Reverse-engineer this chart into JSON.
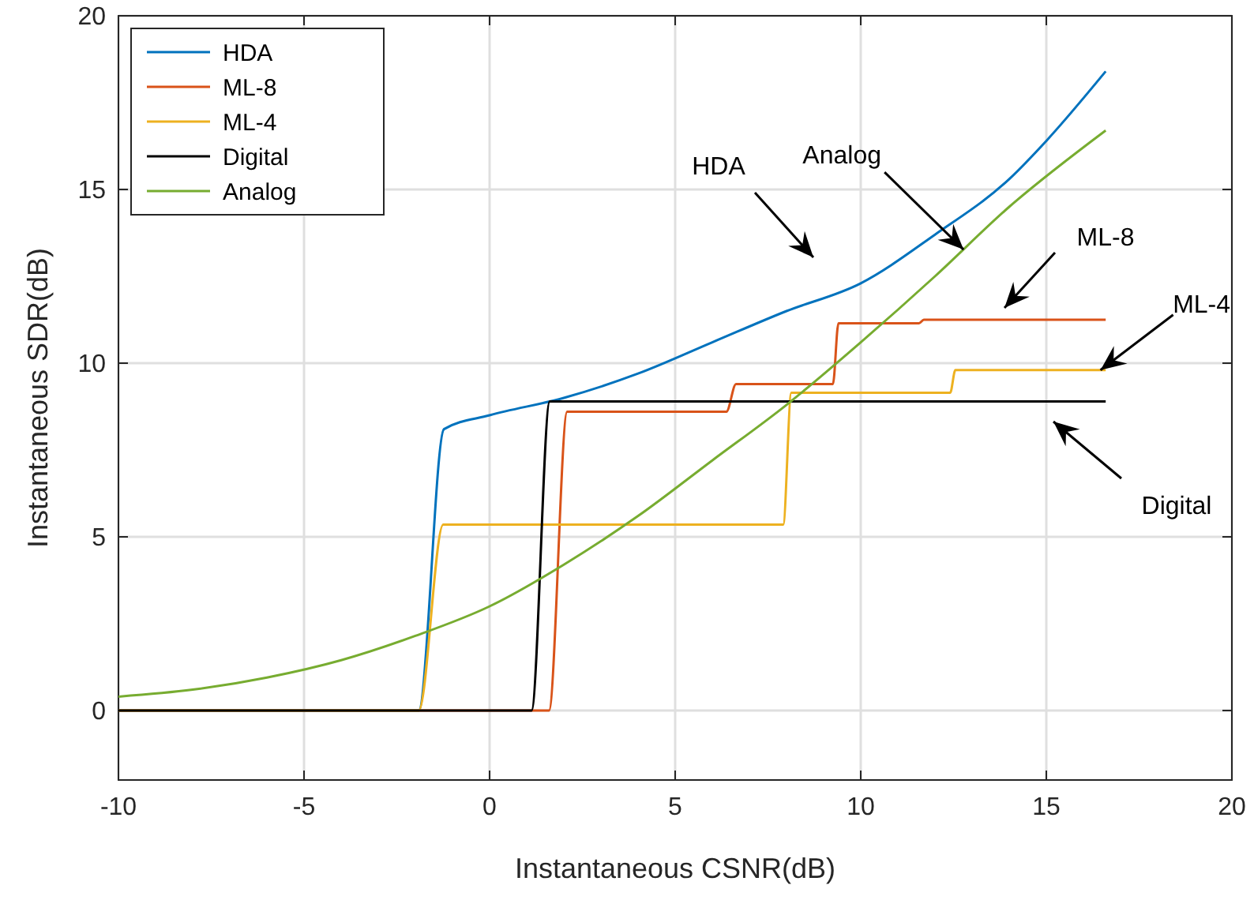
{
  "chart_data": {
    "type": "line",
    "xlabel": "Instantaneous CSNR(dB)",
    "ylabel": "Instantaneous SDR(dB)",
    "xlim": [
      -10,
      20
    ],
    "ylim": [
      -2,
      20
    ],
    "xticks": [
      -10,
      -5,
      0,
      5,
      10,
      15,
      20
    ],
    "yticks": [
      0,
      5,
      10,
      15,
      20
    ],
    "grid": true,
    "legend": "top left",
    "marker": "none",
    "line_style": "solid",
    "series": [
      {
        "name": "HDA",
        "color": "#0072bd",
        "x": [
          -10,
          -1.91,
          -1.23,
          0,
          2,
          4,
          6,
          8,
          10,
          12,
          14,
          15,
          16.6
        ],
        "values": [
          0,
          0,
          8.1,
          8.5,
          9.0,
          9.7,
          10.6,
          11.5,
          12.3,
          13.7,
          15.3,
          16.4,
          18.4
        ]
      },
      {
        "name": "ML-8",
        "color": "#d95319",
        "x": [
          -10,
          1.6,
          2.09,
          6.38,
          6.64,
          9.25,
          9.4,
          11.57,
          11.7,
          16.6
        ],
        "values": [
          0,
          0,
          8.6,
          8.6,
          9.4,
          9.4,
          11.15,
          11.15,
          11.25,
          11.25
        ]
      },
      {
        "name": "ML-4",
        "color": "#edb120",
        "x": [
          -10,
          -1.91,
          -1.25,
          7.91,
          8.13,
          12.41,
          12.55,
          16.6
        ],
        "values": [
          0,
          0,
          5.35,
          5.35,
          9.15,
          9.15,
          9.8,
          9.8
        ]
      },
      {
        "name": "Digital",
        "color": "#000000",
        "x": [
          -10,
          1.13,
          1.62,
          16.6
        ],
        "values": [
          0,
          0,
          8.9,
          8.9
        ]
      },
      {
        "name": "Analog",
        "color": "#77ac30",
        "x": [
          -10,
          -8,
          -6,
          -4,
          -2,
          0,
          2,
          4,
          6,
          8,
          10,
          12,
          14,
          16.6
        ],
        "values": [
          0.4,
          0.6,
          0.95,
          1.45,
          2.15,
          3.0,
          4.2,
          5.6,
          7.2,
          8.8,
          10.6,
          12.5,
          14.5,
          16.7
        ]
      }
    ],
    "annotations": [
      "HDA",
      {
        "text": "Analog",
        "x": 12.77,
        "y": 13.27
      },
      "ML-8",
      {
        "text": "ML-4",
        "x": 16.46,
        "y": 9.8
      },
      "Digital"
    ]
  }
}
